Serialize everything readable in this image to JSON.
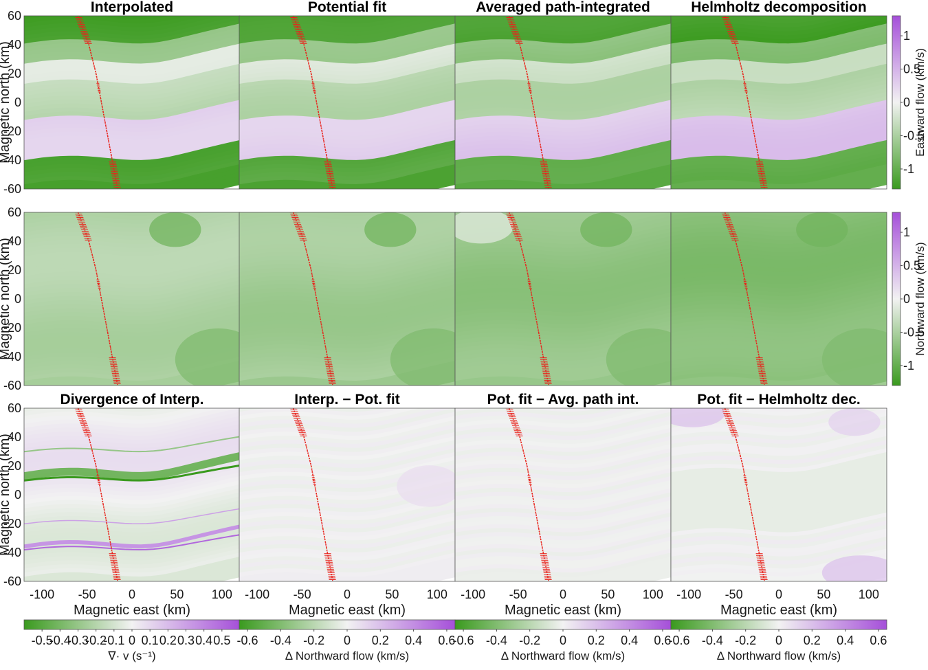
{
  "chart_data": {
    "type": "heatmap",
    "x": {
      "label": "Magnetic east (km)",
      "ticks": [
        -100,
        -50,
        0,
        50,
        100
      ],
      "lim": [
        -120,
        120
      ]
    },
    "y": {
      "label": "Magnetic north (km)",
      "ticks": [
        60,
        40,
        20,
        0,
        -20,
        -40,
        -60
      ],
      "lim": [
        -60,
        60
      ]
    },
    "panels": [
      {
        "id": "r1c1",
        "title": "Interpolated",
        "field": "eastward",
        "variant": 0
      },
      {
        "id": "r1c2",
        "title": "Potential fit",
        "field": "eastward",
        "variant": 1
      },
      {
        "id": "r1c3",
        "title": "Averaged path-integrated",
        "field": "eastward",
        "variant": 2
      },
      {
        "id": "r1c4",
        "title": "Helmholtz decomposition",
        "field": "eastward",
        "variant": 3
      },
      {
        "id": "r2c1",
        "title": "",
        "field": "northward",
        "variant": 0
      },
      {
        "id": "r2c2",
        "title": "",
        "field": "northward",
        "variant": 1
      },
      {
        "id": "r2c3",
        "title": "",
        "field": "northward",
        "variant": 2
      },
      {
        "id": "r2c4",
        "title": "",
        "field": "northward",
        "variant": 3
      },
      {
        "id": "r3c1",
        "title": "Divergence of Interp.",
        "field": "divergence",
        "variant": 0
      },
      {
        "id": "r3c2",
        "title": "Interp. − Pot. fit",
        "field": "difference",
        "variant": 1
      },
      {
        "id": "r3c3",
        "title": "Pot. fit − Avg. path int.",
        "field": "difference",
        "variant": 2
      },
      {
        "id": "r3c4",
        "title": "Pot. fit − Helmholtz dec.",
        "field": "difference",
        "variant": 3
      }
    ],
    "colorbars_right": [
      {
        "label": "Eastward flow (km/s)",
        "ticks": [
          1,
          0.5,
          0,
          -0.5,
          -1
        ],
        "lim": [
          -1.3,
          1.3
        ]
      },
      {
        "label": "Northward flow (km/s)",
        "ticks": [
          1,
          0.5,
          0,
          -0.5,
          -1
        ],
        "lim": [
          -1.3,
          1.3
        ]
      }
    ],
    "colorbars_bottom": [
      {
        "label": "∇· v (s⁻¹)",
        "ticks": [
          -0.5,
          -0.4,
          -0.3,
          -0.2,
          -0.1,
          0,
          0.1,
          0.2,
          0.3,
          0.4,
          0.5
        ],
        "tick_labels": [
          "-0.5",
          "-0.4",
          "-0.3",
          "-0.2",
          "-0.1",
          "0",
          "0.1",
          "0.2",
          "0.3",
          "0.4",
          "0.5"
        ],
        "lim": [
          -0.6,
          0.6
        ]
      },
      {
        "label": "Δ Northward flow (km/s)",
        "ticks": [
          -0.6,
          -0.4,
          -0.2,
          0,
          0.2,
          0.4,
          0.6
        ],
        "tick_labels": [
          "-0.6",
          "-0.4",
          "-0.2",
          "0",
          "0.2",
          "0.4",
          "0.6"
        ],
        "lim": [
          -0.65,
          0.65
        ]
      },
      {
        "label": "Δ Northward flow (km/s)",
        "ticks": [
          -0.6,
          -0.4,
          -0.2,
          0,
          0.2,
          0.4,
          0.6
        ],
        "tick_labels": [
          "-0.6",
          "-0.4",
          "-0.2",
          "0",
          "0.2",
          "0.4",
          "0.6"
        ],
        "lim": [
          -0.65,
          0.65
        ]
      },
      {
        "label": "Δ Northward flow (km/s)",
        "ticks": [
          -0.6,
          -0.4,
          -0.2,
          0,
          0.2,
          0.4,
          0.6
        ],
        "tick_labels": [
          "-0.6",
          "-0.4",
          "-0.2",
          "0",
          "0.2",
          "0.4",
          "0.6"
        ],
        "lim": [
          -0.65,
          0.65
        ]
      }
    ],
    "track": {
      "color": "#e8231b",
      "points": [
        [
          -60,
          60
        ],
        [
          -48,
          40
        ],
        [
          -40,
          20
        ],
        [
          -34,
          0
        ],
        [
          -28,
          -20
        ],
        [
          -22,
          -40
        ],
        [
          -16,
          -60
        ]
      ]
    },
    "colormap": {
      "low": "#3a9a1e",
      "mid": "#f2f2f2",
      "high": "#a54fd9"
    }
  }
}
